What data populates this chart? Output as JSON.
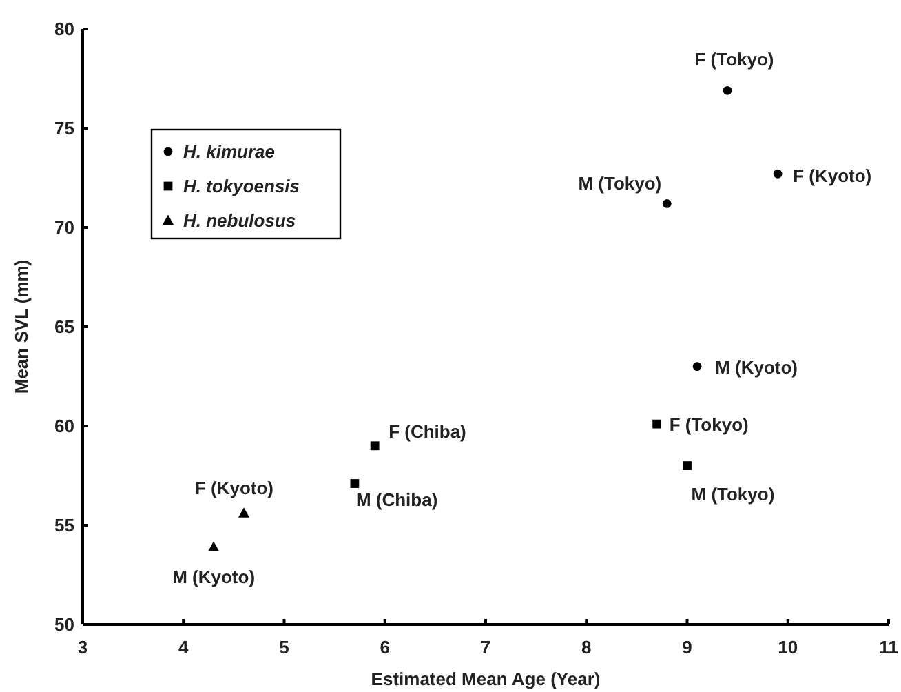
{
  "chart_data": {
    "type": "scatter",
    "xlabel": "Estimated Mean Age (Year)",
    "ylabel": "Mean SVL (mm)",
    "xlim": [
      3,
      11
    ],
    "xticks": [
      3,
      4,
      5,
      6,
      7,
      8,
      9,
      10,
      11
    ],
    "ylim": [
      50,
      80
    ],
    "yticks": [
      50,
      55,
      60,
      65,
      70,
      75,
      80
    ],
    "grid": false,
    "legend": "top left",
    "series": [
      {
        "name": "H. kimurae",
        "color": "#000000",
        "marker": "circle",
        "x": [
          9.4,
          9.9,
          8.8,
          9.1
        ],
        "values": [
          76.9,
          72.7,
          71.2,
          63.0
        ]
      },
      {
        "name": "H. tokyoensis",
        "color": "#000000",
        "marker": "square",
        "x": [
          5.9,
          5.7,
          8.7,
          9.0
        ],
        "values": [
          59.0,
          57.1,
          60.1,
          58.0
        ]
      },
      {
        "name": "H. nebulosus",
        "color": "#000000",
        "marker": "triangle",
        "x": [
          4.6,
          4.3
        ],
        "values": [
          55.6,
          53.9
        ]
      }
    ],
    "annotations": [
      {
        "text": "F (Tokyo)",
        "x": 9.4,
        "y": 76.9
      },
      {
        "text": "F (Kyoto)",
        "x": 9.9,
        "y": 72.7
      },
      {
        "text": "M (Tokyo)",
        "x": 8.8,
        "y": 71.2
      },
      {
        "text": "M (Kyoto)",
        "x": 9.1,
        "y": 63.0
      },
      {
        "text": "F (Chiba)",
        "x": 5.9,
        "y": 59.0
      },
      {
        "text": "M (Chiba)",
        "x": 5.7,
        "y": 57.1
      },
      {
        "text": "F (Tokyo)",
        "x": 8.7,
        "y": 60.1
      },
      {
        "text": "M (Tokyo)",
        "x": 9.0,
        "y": 58.0
      },
      {
        "text": "F (Kyoto)",
        "x": 4.6,
        "y": 55.6
      },
      {
        "text": "M (Kyoto)",
        "x": 4.3,
        "y": 53.9
      }
    ]
  }
}
